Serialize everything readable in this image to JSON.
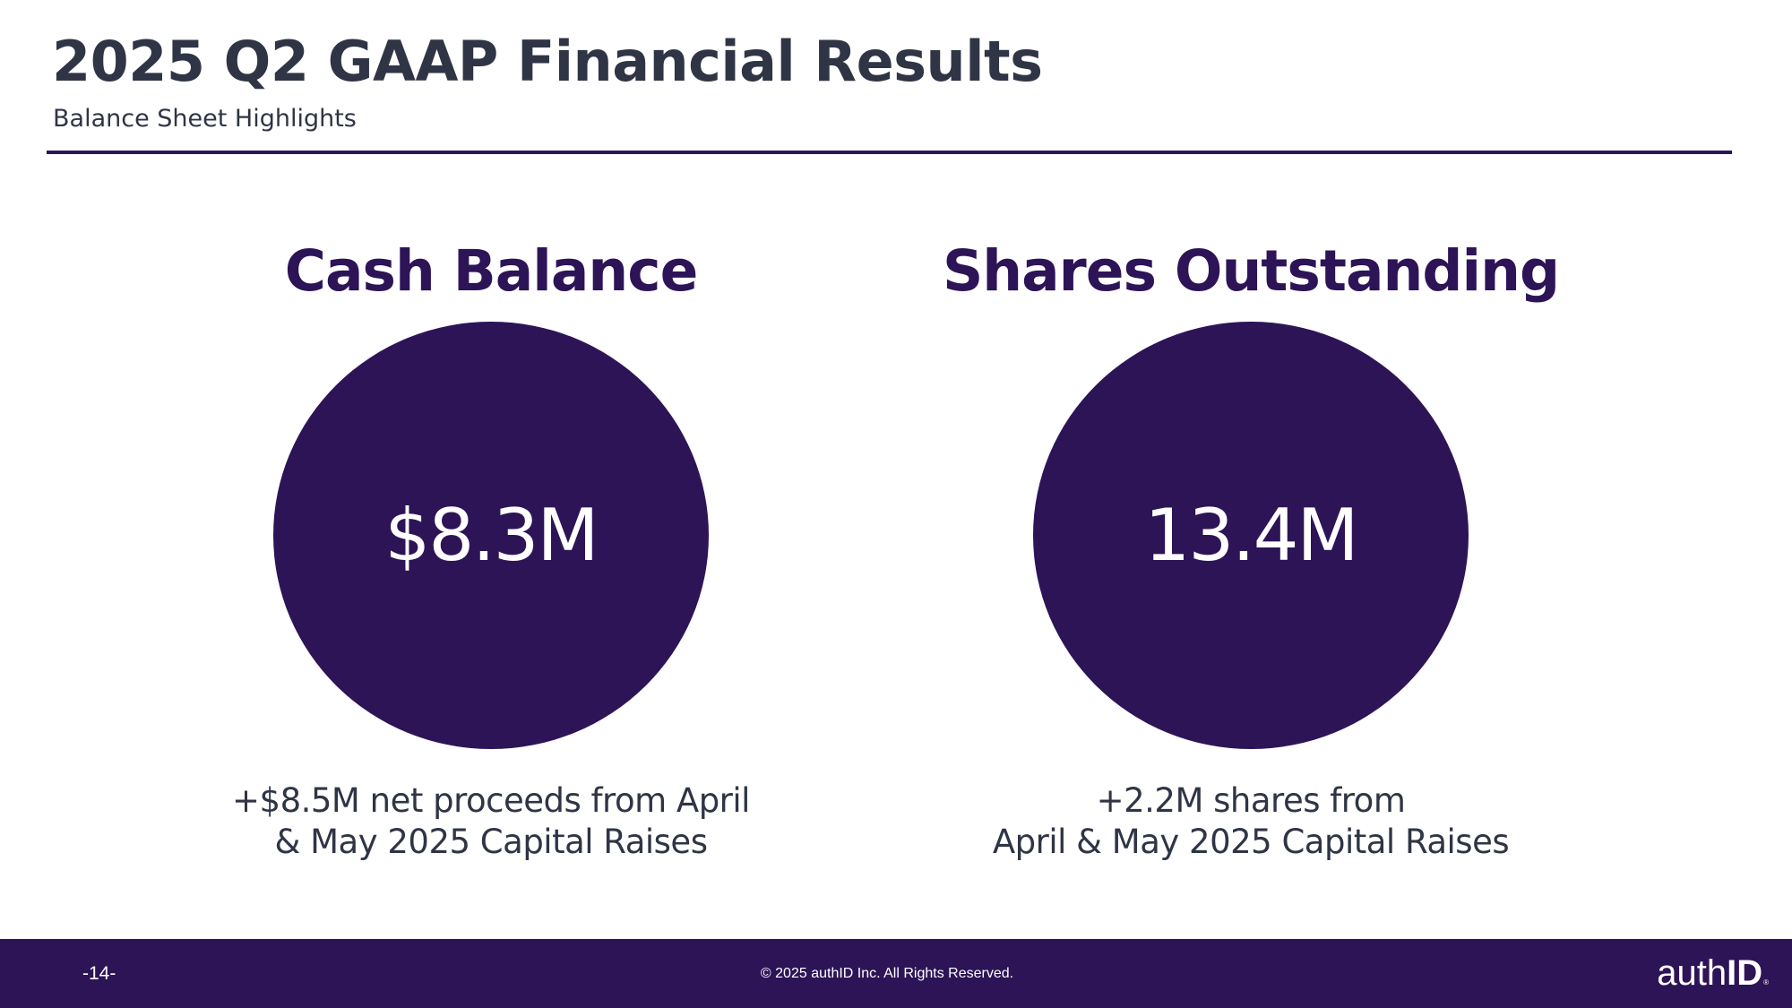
{
  "slide": {
    "title": "2025 Q2 GAAP Financial Results",
    "subtitle": "Balance Sheet Highlights"
  },
  "panels": [
    {
      "heading": "Cash Balance",
      "value": "$8.3M",
      "note_lines": [
        "+$8.5M net proceeds from April",
        "& May 2025 Capital Raises"
      ]
    },
    {
      "heading": "Shares Outstanding",
      "value": "13.4M",
      "note_lines": [
        "+2.2M shares from",
        "April & May 2025 Capital Raises"
      ]
    }
  ],
  "footer": {
    "page_number": "-14-",
    "copyright": "© 2025 authID Inc. All Rights Reserved.",
    "logo": {
      "light": "auth",
      "bold": "ID",
      "mark": "®"
    }
  },
  "colors": {
    "brand_purple": "#2d1457",
    "title_text": "#2f3545",
    "background": "#ffffff"
  }
}
